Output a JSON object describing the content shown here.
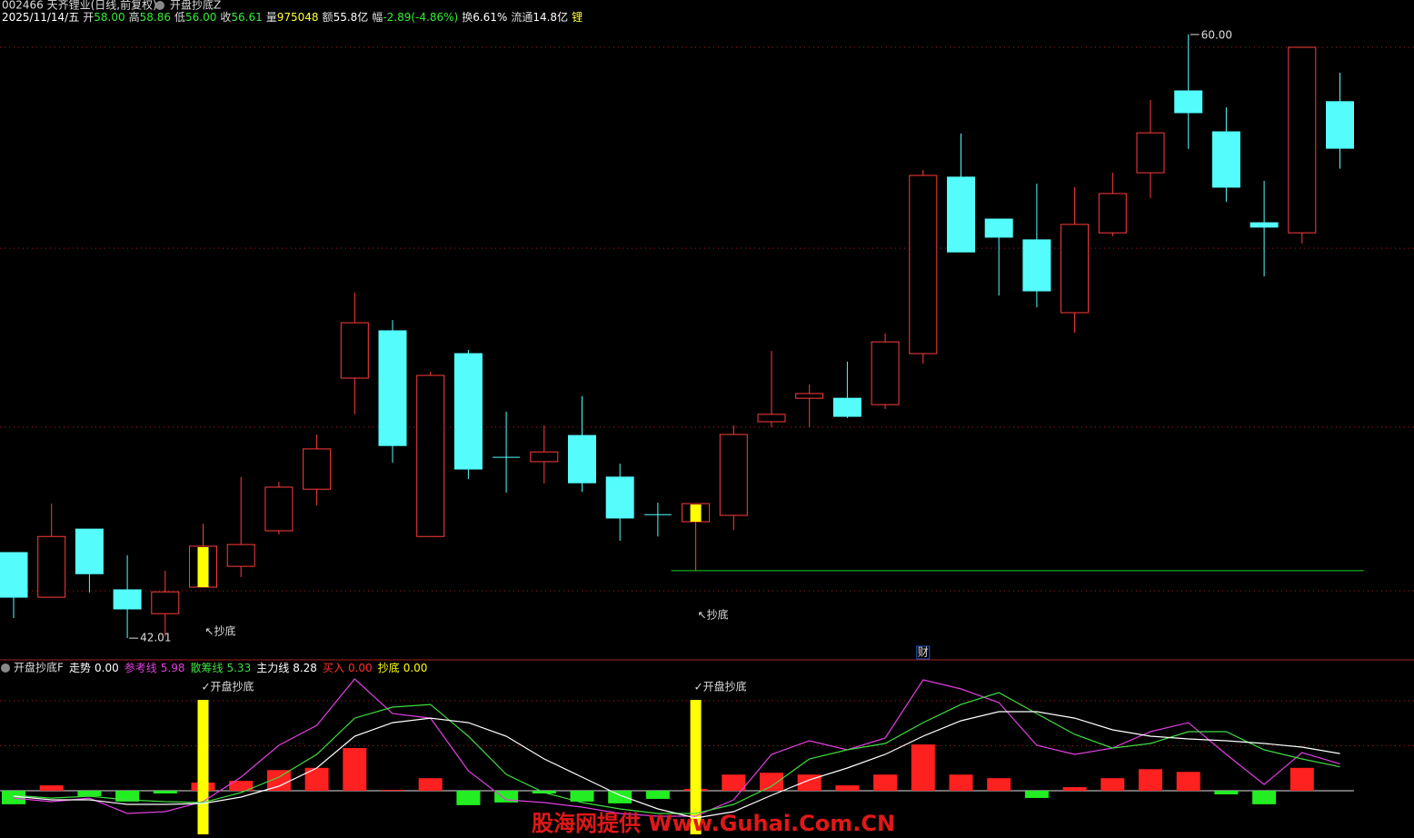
{
  "header": {
    "symbol": "002466 天齐锂业(日线,前复权)",
    "indicator": "开盘抄底Z",
    "items": [
      {
        "value": "2025/11/14/五",
        "color": "#ffffff"
      },
      {
        "label": "开",
        "value": "58.00",
        "color": "#33ee33"
      },
      {
        "label": "高",
        "value": "58.86",
        "color": "#33ee33"
      },
      {
        "label": "低",
        "value": "56.00",
        "color": "#33ee33"
      },
      {
        "label": "收",
        "value": "56.61",
        "color": "#33ee33"
      },
      {
        "label": "量",
        "value": "975048",
        "color": "#ffff33"
      },
      {
        "label": "额",
        "value": "55.8亿",
        "color": "#ffffff"
      },
      {
        "label": "幅",
        "value": "-2.89(-4.86%)",
        "color": "#33ee33"
      },
      {
        "label": "换",
        "value": "6.61%",
        "color": "#ffffff"
      },
      {
        "label": "流通",
        "value": "14.8亿",
        "color": "#ffffff"
      },
      {
        "label": "锂",
        "color": "#ffff33"
      }
    ]
  },
  "watermark": "股海网提供 Www.Guhai.Com.CN",
  "chart_data": [
    {
      "type": "candlestick",
      "open": [
        44.56,
        43.23,
        45.26,
        43.45,
        42.74,
        43.53,
        44.15,
        45.21,
        46.45,
        49.76,
        51.17,
        45.04,
        50.49,
        47.4,
        47.27,
        48.05,
        46.81,
        45.69,
        45.48,
        45.67,
        48.46,
        49.16,
        49.16,
        48.97,
        50.49,
        55.75,
        54.5,
        53.88,
        51.71,
        54.09,
        55.88,
        58.32,
        57.1,
        54.39,
        54.09,
        58.0
      ],
      "high": [
        44.56,
        46.02,
        45.26,
        44.48,
        44.02,
        45.42,
        46.81,
        46.67,
        48.08,
        52.31,
        51.49,
        49.95,
        50.6,
        48.76,
        48.35,
        49.22,
        47.21,
        46.05,
        46.02,
        48.35,
        50.57,
        49.57,
        50.25,
        51.09,
        55.96,
        57.05,
        54.5,
        55.56,
        55.45,
        55.88,
        58.05,
        60.0,
        57.83,
        55.64,
        59.62,
        58.86
      ],
      "low": [
        42.61,
        43.23,
        43.37,
        42.01,
        42.06,
        43.53,
        43.83,
        45.1,
        45.97,
        48.68,
        47.24,
        45.04,
        46.75,
        46.35,
        46.62,
        46.37,
        44.91,
        45.04,
        44.02,
        45.23,
        48.3,
        48.3,
        48.57,
        48.84,
        50.19,
        53.52,
        52.22,
        51.87,
        51.11,
        53.99,
        55.12,
        56.59,
        55.01,
        52.79,
        53.77,
        56.0
      ],
      "close": [
        43.23,
        45.04,
        43.93,
        42.88,
        43.39,
        44.75,
        44.8,
        46.51,
        47.65,
        51.41,
        47.75,
        49.84,
        47.05,
        47.4,
        47.56,
        46.64,
        45.59,
        45.69,
        46.02,
        48.08,
        48.68,
        49.3,
        48.62,
        50.84,
        55.8,
        53.52,
        53.96,
        52.36,
        54.34,
        55.26,
        57.07,
        57.67,
        55.45,
        54.26,
        59.62,
        56.61
      ],
      "up_color": "#ff3c3c",
      "down_color": "#54fcfc",
      "highlight": [
        5,
        18
      ],
      "highlight_color": "#ffff00",
      "ylim": [
        41.39,
        60.27
      ],
      "gridlines": [
        59.62,
        53.63,
        48.3,
        43.42
      ],
      "grid_color": "#aa2020",
      "support": {
        "value": 44.02,
        "from": 18,
        "color": "#22cc22"
      },
      "arrow_labels": [
        {
          "index": 5,
          "text": "↖抄底"
        },
        {
          "index": 18,
          "text": "↖抄底"
        }
      ],
      "low_label": {
        "index": 3,
        "text": "42.01"
      },
      "high_label": {
        "index": 31,
        "text": "60.00"
      },
      "markers": [
        {
          "index": 24,
          "text": "财"
        }
      ]
    },
    {
      "type": "indicator",
      "title": "开盘抄底F",
      "ylim": [
        -10.5,
        28.9
      ],
      "gridlines": [
        10,
        20
      ],
      "series": [
        {
          "name": "走势",
          "kind": "bar",
          "label_color": "#ffffff",
          "up_color": "#ff2020",
          "down_color": "#22ee22",
          "last_label": "0.00",
          "values": [
            -3.0,
            1.2,
            -1.2,
            -2.4,
            -0.6,
            1.8,
            2.2,
            4.6,
            5.1,
            9.5,
            0.2,
            2.8,
            -3.2,
            -2.6,
            -0.6,
            -2.4,
            -2.8,
            -1.8,
            0.4,
            3.6,
            4.0,
            3.6,
            1.2,
            3.6,
            10.3,
            3.6,
            2.8,
            -1.6,
            0.8,
            2.8,
            4.8,
            4.2,
            -0.8,
            -3.0,
            5.1,
            0
          ]
        },
        {
          "name": "参考线",
          "kind": "line",
          "color": "#e040e0",
          "last_label": "5.98",
          "values": [
            -1.62,
            -2.42,
            -1.62,
            -5.05,
            -4.65,
            -2.42,
            3.03,
            10.1,
            14.55,
            24.85,
            17.17,
            16.16,
            4.44,
            -2.02,
            -2.63,
            -3.64,
            -5.05,
            -5.66,
            -5.66,
            -2.02,
            8.08,
            11.11,
            9.09,
            11.72,
            24.65,
            22.63,
            19.6,
            10.1,
            8.08,
            9.49,
            13.13,
            15.15,
            8.08,
            1.41,
            8.48,
            5.98
          ]
        },
        {
          "name": "散筹线",
          "kind": "line",
          "color": "#40dd40",
          "last_label": "5.33",
          "values": [
            -1.01,
            -1.62,
            -1.21,
            -2.02,
            -2.42,
            -2.63,
            -0.4,
            3.03,
            8.08,
            16.16,
            18.59,
            19.19,
            12.12,
            3.64,
            -0.4,
            -2.63,
            -4.04,
            -5.05,
            -5.05,
            -3.03,
            1.01,
            7.07,
            9.09,
            10.51,
            15.15,
            19.19,
            21.82,
            17.17,
            12.53,
            9.49,
            10.51,
            13.13,
            13.13,
            9.09,
            7.07,
            5.33
          ]
        },
        {
          "name": "主力线",
          "kind": "line",
          "color": "#ffffff",
          "last_label": "8.28",
          "values": [
            -1.21,
            -2.02,
            -2.02,
            -3.03,
            -3.03,
            -2.83,
            -1.41,
            1.01,
            5.05,
            12.12,
            15.15,
            16.16,
            15.15,
            12.12,
            7.07,
            3.03,
            -1.01,
            -4.04,
            -6.06,
            -4.65,
            -1.01,
            2.42,
            5.05,
            8.08,
            12.12,
            15.56,
            17.58,
            17.58,
            16.16,
            13.54,
            12.12,
            11.52,
            11.11,
            10.51,
            9.7,
            8.28
          ]
        },
        {
          "name": "买入",
          "kind": "none",
          "color": "#ff3030",
          "last_label": "0.00"
        },
        {
          "name": "抄底",
          "kind": "signal",
          "color": "#ffff00",
          "last_label": "0.00",
          "values": [
            0,
            0,
            0,
            0,
            0,
            20.2,
            0,
            0,
            0,
            0,
            0,
            0,
            0,
            0,
            0,
            0,
            0,
            0,
            20.2,
            0,
            0,
            0,
            0,
            0,
            0,
            0,
            0,
            0,
            0,
            0,
            0,
            0,
            0,
            0,
            0,
            0
          ]
        }
      ],
      "signal_labels": [
        {
          "index": 5,
          "text": "✓开盘抄底"
        },
        {
          "index": 18,
          "text": "✓开盘抄底"
        }
      ]
    }
  ]
}
